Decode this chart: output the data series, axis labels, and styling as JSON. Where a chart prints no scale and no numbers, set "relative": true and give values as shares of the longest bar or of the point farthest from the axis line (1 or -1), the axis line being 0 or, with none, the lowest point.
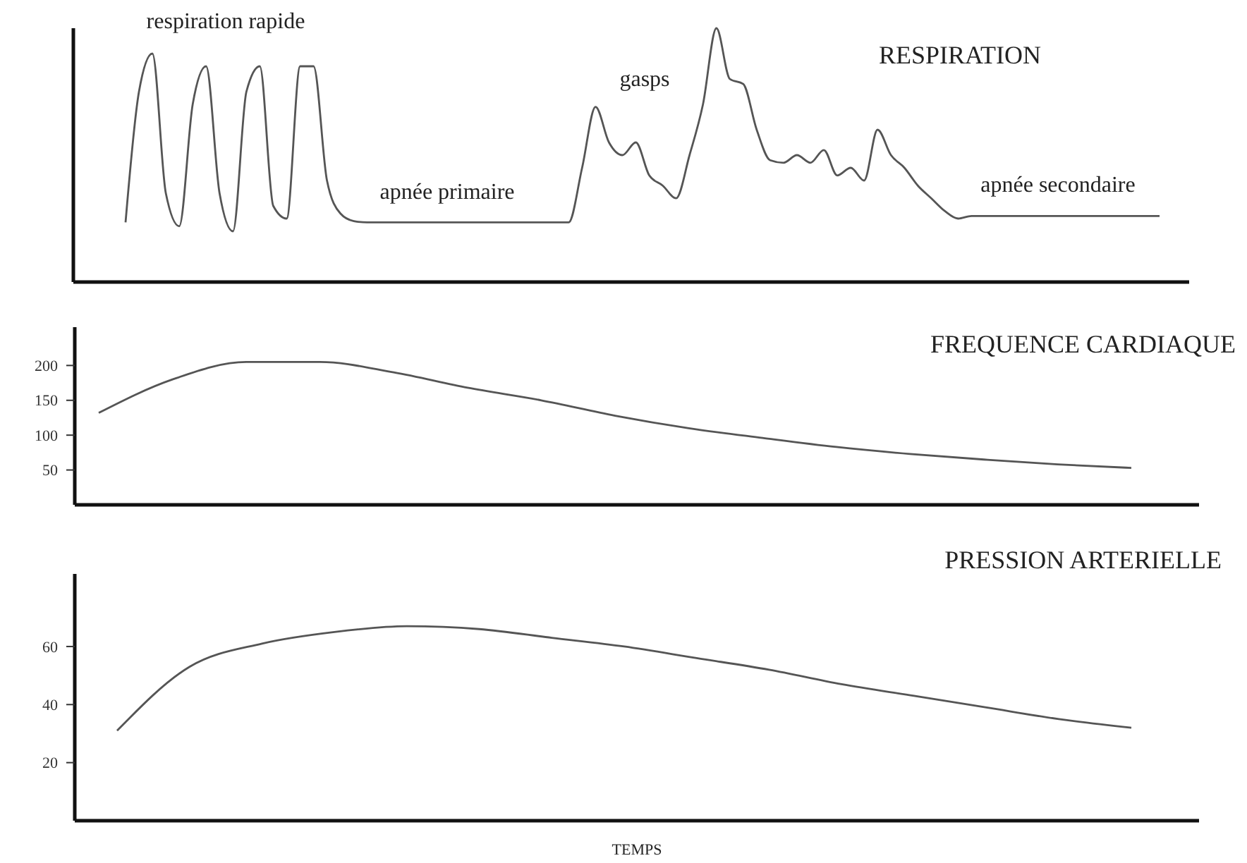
{
  "chart_data": [
    {
      "type": "line",
      "title": "RESPIRATION",
      "relative": true,
      "tick_labels": false,
      "grid": false,
      "marker": "none",
      "line_style": "solid",
      "annotations": [
        "respiration rapide",
        "apnée primaire",
        "gasps",
        "apnée secondaire"
      ],
      "categories": [
        null,
        null,
        null,
        null,
        null,
        null,
        null,
        null,
        null,
        null,
        null,
        null,
        null,
        null,
        null,
        null,
        null,
        null,
        null,
        null,
        null,
        null,
        null,
        null,
        null,
        null,
        null,
        null,
        null,
        null,
        null,
        null,
        null,
        null,
        null,
        null,
        null,
        null,
        null,
        null,
        null,
        null,
        null,
        null,
        null,
        null,
        null,
        null,
        null,
        null,
        null,
        null,
        null,
        null,
        null,
        null,
        null,
        null,
        null,
        null,
        null,
        null,
        null,
        null,
        null,
        null,
        null,
        null,
        null,
        null,
        null,
        null,
        null,
        null,
        null,
        null,
        null,
        null
      ],
      "series": [
        {
          "color": "#555555",
          "values": [
            0.235,
            0.75,
            0.9,
            0.35,
            0.22,
            0.7,
            0.85,
            0.35,
            0.2,
            0.75,
            0.85,
            0.3,
            0.25,
            0.85,
            0.85,
            0.4,
            0.27,
            0.24,
            0.235,
            0.235,
            0.235,
            0.235,
            0.235,
            0.235,
            0.235,
            0.235,
            0.235,
            0.235,
            0.235,
            0.235,
            0.235,
            0.235,
            0.235,
            0.235,
            0.45,
            0.69,
            0.55,
            0.5,
            0.55,
            0.42,
            0.38,
            0.33,
            0.5,
            0.7,
            1,
            0.8,
            0.78,
            0.6,
            0.48,
            0.47,
            0.5,
            0.47,
            0.52,
            0.42,
            0.45,
            0.4,
            0.6,
            0.5,
            0.45,
            0.38,
            0.33,
            0.28,
            0.25,
            0.26,
            0.26,
            0.26,
            0.26,
            0.26,
            0.26,
            0.26,
            0.26,
            0.26,
            0.26,
            0.26,
            0.26,
            0.26,
            0.26,
            0.26
          ]
        }
      ]
    },
    {
      "type": "line",
      "title": "FREQUENCE CARDIAQUE",
      "ylim": [
        0,
        255
      ],
      "yticks": [
        50,
        100,
        150,
        200
      ],
      "tick_labels": "y",
      "grid": false,
      "marker": "none",
      "line_style": "solid",
      "categories": [
        null,
        null,
        null,
        null,
        null,
        null,
        null,
        null,
        null,
        null,
        null,
        null,
        null,
        null,
        null
      ],
      "series": [
        {
          "color": "#555555",
          "values": [
            132,
            180,
            205,
            205,
            190,
            168,
            150,
            128,
            110,
            96,
            83,
            73,
            65,
            58,
            53
          ]
        }
      ]
    },
    {
      "type": "line",
      "title": "PRESSION ARTERIELLE",
      "xlabel": "TEMPS",
      "ylim": [
        0,
        85
      ],
      "yticks": [
        20,
        40,
        60
      ],
      "tick_labels": "y",
      "grid": false,
      "marker": "none",
      "line_style": "solid",
      "categories": [
        null,
        null,
        null,
        null,
        null,
        null,
        null,
        null,
        null,
        null,
        null,
        null,
        null,
        null,
        null
      ],
      "series": [
        {
          "color": "#555555",
          "values": [
            31,
            53,
            61,
            65,
            67,
            66,
            63,
            60,
            56,
            52,
            47,
            43,
            39,
            35,
            32
          ]
        }
      ]
    }
  ]
}
